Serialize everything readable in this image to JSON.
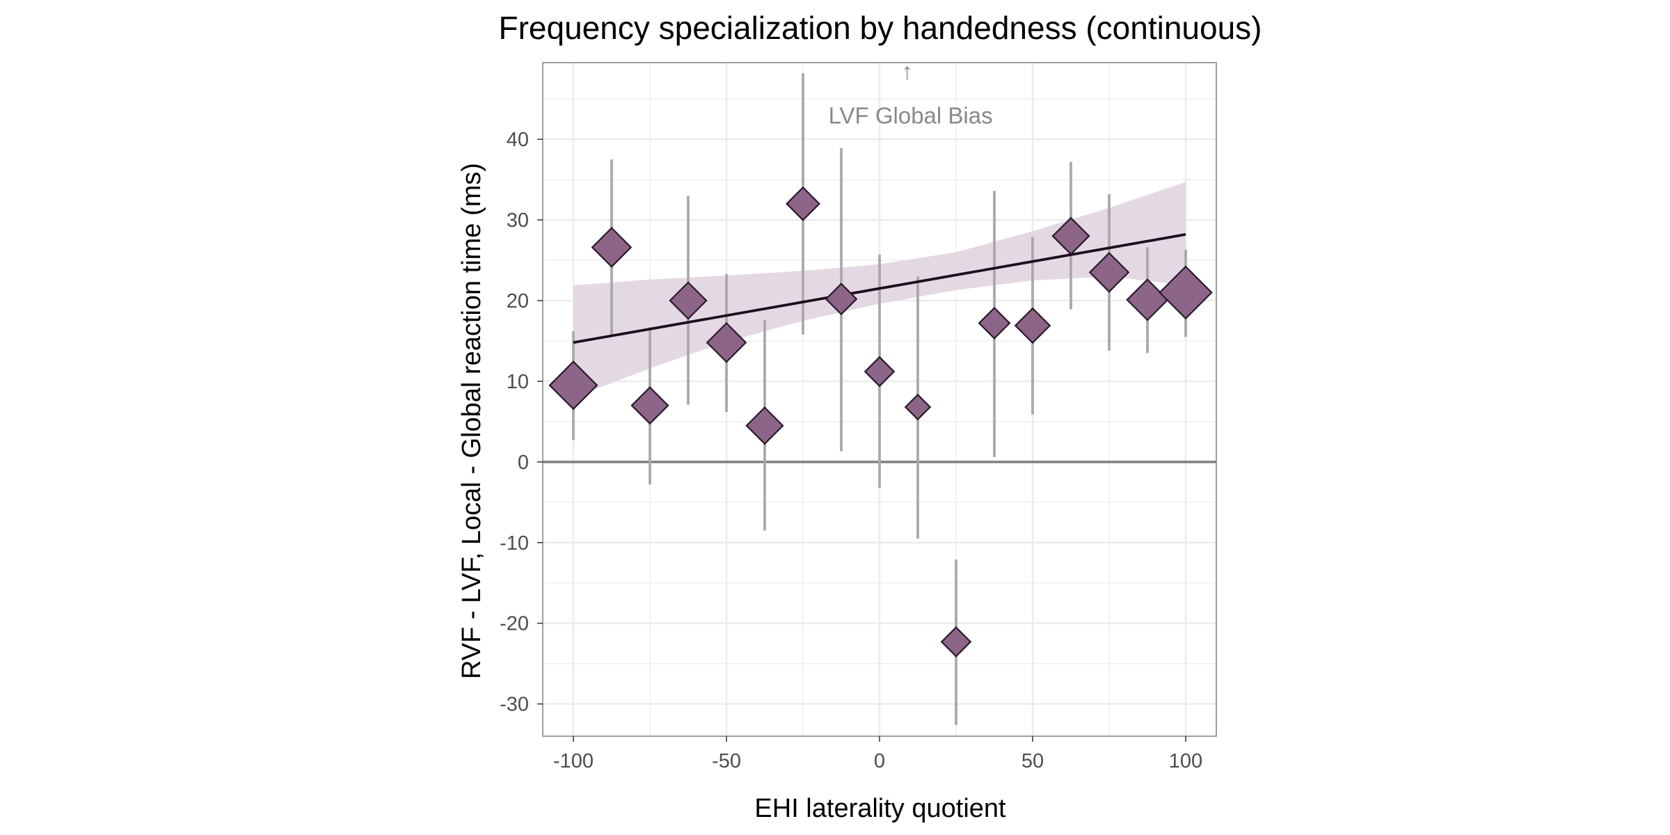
{
  "chart_data": {
    "type": "scatter",
    "title": "Frequency specialization by handedness (continuous)",
    "xlabel": "EHI laterality quotient",
    "ylabel": "RVF - LVF, Local - Global reaction time (ms)",
    "xlim": [
      -110,
      110
    ],
    "ylim": [
      -34,
      49.5
    ],
    "x_ticks": [
      -100,
      -50,
      0,
      50,
      100
    ],
    "y_ticks": [
      -30,
      -20,
      -10,
      0,
      10,
      20,
      30,
      40
    ],
    "grid": true,
    "reference_line_y": 0,
    "annotation": {
      "text": "LVF Global Bias",
      "arrow": "↑",
      "x": 9,
      "y": 43
    },
    "points": [
      {
        "x": -100,
        "y": 9.5,
        "lo": 2.7,
        "hi": 16.2,
        "size": 1.0
      },
      {
        "x": -87.5,
        "y": 26.6,
        "lo": 15.6,
        "hi": 37.5,
        "size": 0.72
      },
      {
        "x": -75,
        "y": 7.0,
        "lo": -2.8,
        "hi": 16.7,
        "size": 0.64
      },
      {
        "x": -62.5,
        "y": 20.0,
        "lo": 7.1,
        "hi": 33.0,
        "size": 0.64
      },
      {
        "x": -50,
        "y": 14.8,
        "lo": 6.2,
        "hi": 23.3,
        "size": 0.72
      },
      {
        "x": -37.5,
        "y": 4.5,
        "lo": -8.5,
        "hi": 17.6,
        "size": 0.64
      },
      {
        "x": -25,
        "y": 32.0,
        "lo": 15.8,
        "hi": 48.2,
        "size": 0.52
      },
      {
        "x": -12.5,
        "y": 20.2,
        "lo": 1.3,
        "hi": 38.9,
        "size": 0.45
      },
      {
        "x": 0,
        "y": 11.2,
        "lo": -3.2,
        "hi": 25.7,
        "size": 0.4
      },
      {
        "x": 12.5,
        "y": 6.8,
        "lo": -9.5,
        "hi": 23.0,
        "size": 0.26
      },
      {
        "x": 25,
        "y": -22.3,
        "lo": -32.6,
        "hi": -12.1,
        "size": 0.4
      },
      {
        "x": 37.5,
        "y": 17.2,
        "lo": 0.6,
        "hi": 33.6,
        "size": 0.45
      },
      {
        "x": 50,
        "y": 16.9,
        "lo": 5.9,
        "hi": 27.9,
        "size": 0.58
      },
      {
        "x": 62.5,
        "y": 28.0,
        "lo": 18.9,
        "hi": 37.2,
        "size": 0.64
      },
      {
        "x": 75,
        "y": 23.5,
        "lo": 13.8,
        "hi": 33.2,
        "size": 0.72
      },
      {
        "x": 87.5,
        "y": 20.1,
        "lo": 13.5,
        "hi": 26.6,
        "size": 0.78
      },
      {
        "x": 100,
        "y": 21.0,
        "lo": 15.5,
        "hi": 26.3,
        "size": 1.15
      }
    ],
    "regression": {
      "x": [
        -100,
        100
      ],
      "y": [
        14.8,
        28.2
      ]
    },
    "confidence_band": {
      "x": [
        -100,
        -75,
        -50,
        -25,
        0,
        25,
        50,
        75,
        100
      ],
      "lo": [
        8.0,
        11.6,
        14.9,
        17.5,
        19.6,
        21.3,
        22.5,
        23.0,
        21.9
      ],
      "hi": [
        21.9,
        22.6,
        23.1,
        23.7,
        24.5,
        26.0,
        28.6,
        31.5,
        34.7
      ]
    },
    "colors": {
      "marker_fill": "#8c6589",
      "marker_stroke": "#2a1a2a",
      "errorbar": "#a9a9a9",
      "band": "#e4d8e3",
      "regression_line": "#1a0f1a",
      "zero_line": "#7f7f7f",
      "grid": "#ebebeb",
      "panel_border": "#7f7f7f"
    }
  }
}
